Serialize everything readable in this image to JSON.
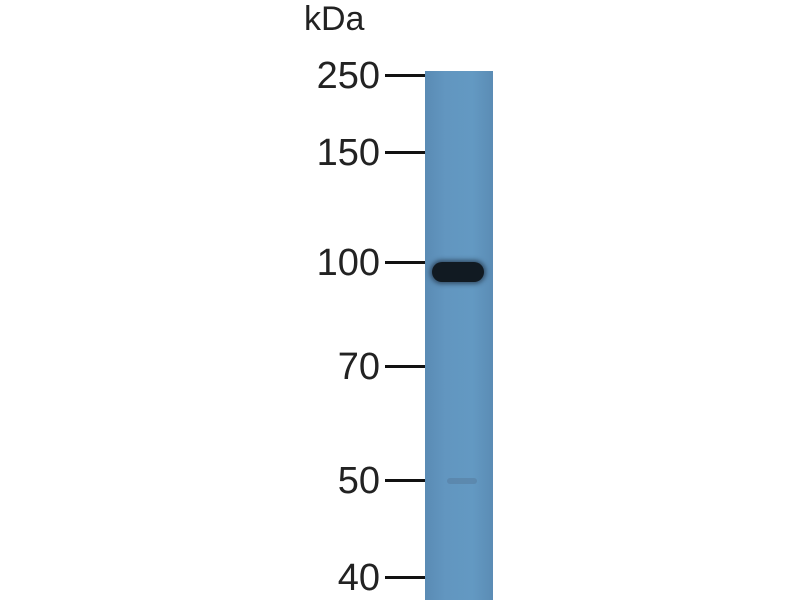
{
  "unit_label": "kDa",
  "markers": [
    {
      "label": "250",
      "kda": 250
    },
    {
      "label": "150",
      "kda": 150
    },
    {
      "label": "100",
      "kda": 100
    },
    {
      "label": "70",
      "kda": 70
    },
    {
      "label": "50",
      "kda": 50
    },
    {
      "label": "40",
      "kda": 40
    }
  ],
  "lane_color": "#6296c0",
  "bands": [
    {
      "kda": 97,
      "intensity": "strong"
    },
    {
      "kda": 50,
      "intensity": "faint"
    }
  ]
}
